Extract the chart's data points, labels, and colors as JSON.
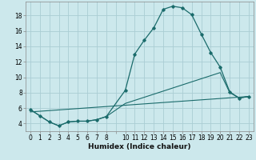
{
  "xlabel": "Humidex (Indice chaleur)",
  "bg_color": "#cce8ec",
  "grid_color": "#aacdd4",
  "line_color": "#1a6b6b",
  "xlim": [
    -0.5,
    23.5
  ],
  "ylim": [
    3.0,
    19.8
  ],
  "yticks": [
    4,
    6,
    8,
    10,
    12,
    14,
    16,
    18
  ],
  "xtick_labels": [
    "0",
    "1",
    "2",
    "3",
    "4",
    "5",
    "6",
    "7",
    "8",
    "",
    "10",
    "11",
    "12",
    "13",
    "14",
    "15",
    "16",
    "17",
    "18",
    "19",
    "20",
    "21",
    "22",
    "23"
  ],
  "curve1_x": [
    0,
    1,
    2,
    3,
    4,
    5,
    6,
    7,
    8,
    10,
    11,
    12,
    13,
    14,
    15,
    16,
    17,
    18,
    19,
    20,
    21,
    22,
    23
  ],
  "curve1_y": [
    5.8,
    5.0,
    4.2,
    3.7,
    4.2,
    4.3,
    4.3,
    4.5,
    4.9,
    8.3,
    13.0,
    14.8,
    16.4,
    18.8,
    19.2,
    19.0,
    18.1,
    15.6,
    13.2,
    11.3,
    8.1,
    7.3,
    7.5
  ],
  "curve2_x": [
    0,
    1,
    2,
    3,
    4,
    5,
    6,
    7,
    8,
    10,
    11,
    12,
    13,
    14,
    15,
    16,
    17,
    18,
    19,
    20,
    21,
    22,
    23
  ],
  "curve2_y": [
    5.8,
    5.0,
    4.2,
    3.7,
    4.2,
    4.3,
    4.3,
    4.5,
    4.9,
    6.6,
    7.0,
    7.4,
    7.8,
    8.2,
    8.6,
    9.0,
    9.4,
    9.8,
    10.2,
    10.6,
    8.0,
    7.3,
    7.5
  ],
  "curve3_x": [
    0,
    23
  ],
  "curve3_y": [
    5.5,
    7.5
  ],
  "fontsize_label": 6.5,
  "fontsize_tick": 5.5
}
